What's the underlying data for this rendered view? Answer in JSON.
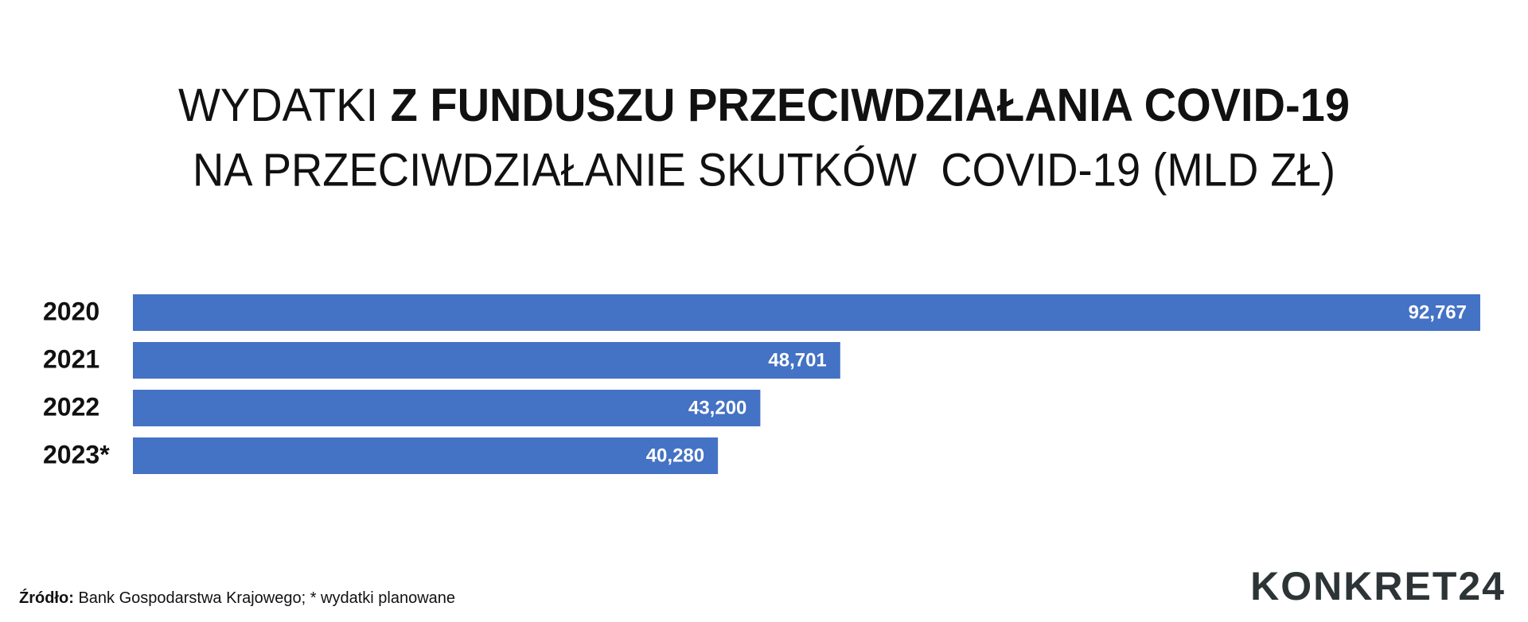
{
  "chart_data": {
    "type": "bar",
    "orientation": "horizontal",
    "title": {
      "regular": "WYDATKI",
      "bold": "Z FUNDUSZU PRZECIWDZIAŁANIA COVID-19"
    },
    "subtitle": "NA PRZECIWDZIAŁANIE SKUTKÓW  COVID-19 (MLD ZŁ)",
    "categories": [
      "2020",
      "2021",
      "2022",
      "2023*"
    ],
    "values": [
      92.767,
      48.701,
      43.2,
      40.28
    ],
    "value_labels": [
      "92,767",
      "48,701",
      "43,200",
      "40,280"
    ],
    "color": "#4472c4",
    "xlim": [
      0,
      92.767
    ],
    "source": {
      "label": "Źródło:",
      "text": "Bank Gospodarstwa Krajowego; * wydatki planowane"
    },
    "logo": "KONKRET24"
  }
}
